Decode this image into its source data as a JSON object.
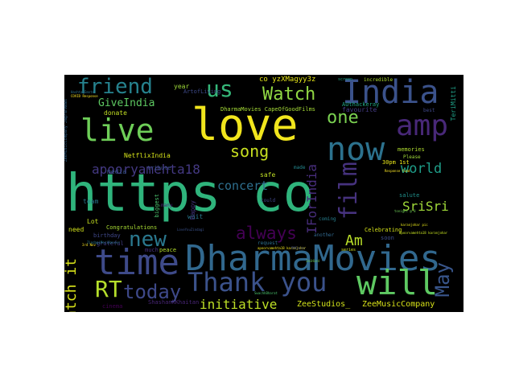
{
  "words": {
    "https_co": {
      "text": "https co",
      "color": "#2fb47c"
    },
    "love": {
      "text": "love",
      "color": "#f1e51d"
    },
    "India": {
      "text": "India",
      "color": "#3b528b"
    },
    "DharmaMovies": {
      "text": "DharmaMovies",
      "color": "#31688e"
    },
    "time": {
      "text": "time",
      "color": "#3e4a89"
    },
    "now": {
      "text": "now",
      "color": "#2c728e"
    },
    "live": {
      "text": "live",
      "color": "#6ece58"
    },
    "amp": {
      "text": "amp",
      "color": "#482878"
    },
    "will": {
      "text": "will",
      "color": "#5ec962"
    },
    "Thank_you": {
      "text": "Thank you",
      "color": "#3b528b"
    },
    "friend": {
      "text": "friend",
      "color": "#26828e"
    },
    "us": {
      "text": "us",
      "color": "#35b779"
    },
    "Watch": {
      "text": "Watch",
      "color": "#90d743"
    },
    "film": {
      "text": "film",
      "color": "#46327e"
    },
    "song": {
      "text": "song",
      "color": "#c8e020"
    },
    "new": {
      "text": "new",
      "color": "#2a788e"
    },
    "RT": {
      "text": "RT",
      "color": "#b5de2b"
    },
    "today": {
      "text": "today",
      "color": "#3e4989"
    },
    "May": {
      "text": "May",
      "color": "#39568c"
    },
    "one": {
      "text": "one",
      "color": "#7ad151"
    },
    "apooryamehta18": {
      "text": "apooryamehta18",
      "color": "#443983"
    },
    "always": {
      "text": "always",
      "color": "#440154"
    },
    "IForIndia": {
      "text": "IForIndia",
      "color": "#472d7b"
    },
    "world": {
      "text": "world",
      "color": "#1f9e89"
    },
    "SriSri": {
      "text": "SriSri",
      "color": "#a0da39"
    },
    "Watch_it": {
      "text": "Watch it",
      "color": "#d8e219"
    },
    "initiative": {
      "text": "initiative",
      "color": "#bddf26"
    },
    "Am": {
      "text": "Am",
      "color": "#b8de29"
    },
    "concert": {
      "text": "concert",
      "color": "#2e6f8e"
    },
    "GiveIndia": {
      "text": "GiveIndia",
      "color": "#5ec962"
    },
    "ZeeStudios": {
      "text": "ZeeStudios_",
      "color": "#d2e21b"
    },
    "ZeeMusicCompany": {
      "text": "ZeeMusicCompany",
      "color": "#d8e219"
    },
    "co_yzXMagyy3z": {
      "text": "co yzXMagyy3z",
      "color": "#e5e419"
    },
    "NetflixIndia": {
      "text": "NetflixIndia",
      "color": "#d5e21a"
    },
    "ArtofLiving": {
      "text": "ArtofLiving",
      "color": "#3e4a89"
    },
    "DharmaMovies_CapeOfGoodFilms": {
      "text": "DharmaMovies CapeOfGoodFilms",
      "color": "#a5db36"
    },
    "AUthackeray": {
      "text": "AUthackeray",
      "color": "#22a884"
    },
    "TeriMitti": {
      "text": "TeriMitti",
      "color": "#1fa188"
    },
    "year": {
      "text": "year",
      "color": "#9fda3a"
    },
    "donate": {
      "text": "donate",
      "color": "#c2df23"
    },
    "favourite": {
      "text": "favourite",
      "color": "#443b84"
    },
    "memories": {
      "text": "memories",
      "color": "#b0dd2f"
    },
    "Please": {
      "text": "Please",
      "color": "#a0da39"
    },
    "media": {
      "text": "media",
      "color": "#3a548c"
    },
    "tribute": {
      "text": "tribute",
      "color": "#3b518b"
    },
    "safe": {
      "text": "safe",
      "color": "#c0df25"
    },
    "made": {
      "text": "made",
      "color": "#24878e"
    },
    "30pm": {
      "text": "30pm 1st",
      "color": "#e7e419"
    },
    "Lot": {
      "text": "Lot",
      "color": "#c5e021"
    },
    "wait": {
      "text": "wait",
      "color": "#29798e"
    },
    "need": {
      "text": "need",
      "color": "#d2e21b"
    },
    "Congratulations": {
      "text": "Congratulations",
      "color": "#a8db34"
    },
    "birthday": {
      "text": "birthday",
      "color": "#3f4788"
    },
    "grateful": {
      "text": "grateful",
      "color": "#433e85"
    },
    "much": {
      "text": "much",
      "color": "#46307e"
    },
    "peace": {
      "text": "peace",
      "color": "#b5de2b"
    },
    "cinema": {
      "text": "cinema",
      "color": "#440154"
    },
    "ShashankKhaitan": {
      "text": "ShashankKhaitan",
      "color": "#482576"
    },
    "another": {
      "text": "another",
      "color": "#31688e"
    },
    "Celebrating": {
      "text": "Celebrating",
      "color": "#d5e21a"
    },
    "soon": {
      "text": "soon",
      "color": "#3d4e8a"
    },
    "salute": {
      "text": "salute",
      "color": "#21918c"
    },
    "coming": {
      "text": "coming",
      "color": "#277f8e"
    },
    "request": {
      "text": "request",
      "color": "#2d708e"
    },
    "Happy": {
      "text": "Happy",
      "color": "#453581"
    },
    "team": {
      "text": "team",
      "color": "#2a788e"
    },
    "many": {
      "text": "many",
      "color": "#482475"
    },
    "biggest": {
      "text": "biggest",
      "color": "#4ac16d"
    },
    "incredible": {
      "text": "incredible",
      "color": "#addc30"
    },
    "best": {
      "text": "best",
      "color": "#3f4788"
    },
    "screen": {
      "text": "screen",
      "color": "#21a685"
    },
    "could": {
      "text": "could",
      "color": "#404688"
    },
    "ZeeMusicCompany_JagranNews": {
      "text": "ZeeMusicCompany JagranNews",
      "color": "#32658e"
    },
    "Response_fund": {
      "text": "Response fund",
      "color": "#fde725"
    },
    "SwachhBharat": {
      "text": "SwachhBharat",
      "color": "#4ac16d"
    },
    "tiny1": {
      "text": "apoorvamehta18 karanjohar",
      "color": "#f2e51d"
    },
    "tiny2": {
      "text": "HashtagEmote",
      "color": "#2c728e"
    },
    "tiny3": {
      "text": "COVID Response",
      "color": "#fde725"
    },
    "tiny4": {
      "text": "LoveYouZindagi",
      "color": "#3b528b"
    },
    "tiny5": {
      "text": "apoorvamehta18 karanjohar",
      "color": "#c5e021"
    },
    "tiny6": {
      "text": "tonight @ 8",
      "color": "#6ece58"
    },
    "tiny7": {
      "text": "ZindagiMeriDancer",
      "color": "#2a788e"
    },
    "tiny8": {
      "text": "series",
      "color": "#d2e21b"
    },
    "tiny9": {
      "text": "3rd Nov",
      "color": "#fde725"
    },
    "tiny10": {
      "text": "PMCares",
      "color": "#3e4a89"
    },
    "tiny11": {
      "text": "karanjohar pic",
      "color": "#e5e419"
    },
    "tiny12": {
      "text": "JaiHind",
      "color": "#6ece58"
    }
  }
}
